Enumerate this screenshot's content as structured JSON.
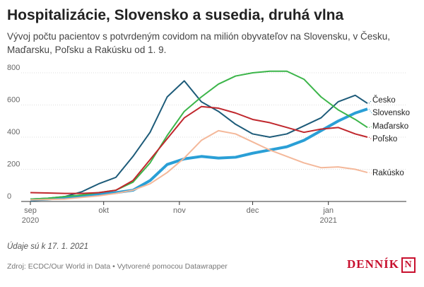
{
  "chart_data": {
    "type": "line",
    "title": "Hospitalizácie, Slovensko a susedia, druhá vlna",
    "subtitle": "Vývoj počtu pacientov s potvrdeným covidom na milión obyvateľov na Slovensku, v Česku, Maďarsku, Poľsku a Rakúsku od 1. 9.",
    "note": "Údaje sú k 17. 1. 2021",
    "source": "Zdroj: ECDC/Our World in Data • Vytvorené pomocou Datawrapper",
    "logo": "DENNÍK",
    "x": [
      0,
      7,
      14,
      21,
      28,
      35,
      42,
      49,
      56,
      63,
      70,
      77,
      84,
      91,
      98,
      105,
      112,
      119,
      126,
      133,
      138
    ],
    "xlim": [
      0,
      138
    ],
    "xticks": [
      {
        "value": 0,
        "label": "sep",
        "year": "2020"
      },
      {
        "value": 30,
        "label": "okt"
      },
      {
        "value": 61,
        "label": "nov"
      },
      {
        "value": 91,
        "label": "dec"
      },
      {
        "value": 122,
        "label": "jan",
        "year": "2021"
      }
    ],
    "ylim": [
      0,
      800
    ],
    "yticks": [
      0,
      200,
      400,
      600,
      800
    ],
    "grid": true,
    "series": [
      {
        "name": "Česko",
        "color": "#1d5b79",
        "width": 2,
        "values": [
          15,
          20,
          30,
          60,
          110,
          150,
          280,
          430,
          650,
          750,
          620,
          560,
          480,
          420,
          400,
          420,
          470,
          520,
          620,
          660,
          610
        ]
      },
      {
        "name": "Slovensko",
        "color": "#2a9fd6",
        "width": 4,
        "values": [
          10,
          15,
          25,
          35,
          45,
          55,
          70,
          130,
          230,
          265,
          280,
          270,
          275,
          300,
          320,
          340,
          380,
          440,
          500,
          550,
          575
        ]
      },
      {
        "name": "Maďarsko",
        "color": "#3cb54a",
        "width": 2,
        "values": [
          15,
          20,
          30,
          40,
          55,
          70,
          120,
          240,
          410,
          560,
          650,
          730,
          780,
          800,
          810,
          810,
          760,
          650,
          570,
          510,
          460
        ]
      },
      {
        "name": "Poľsko",
        "color": "#c0272d",
        "width": 2,
        "values": [
          55,
          53,
          50,
          50,
          55,
          70,
          130,
          260,
          390,
          520,
          590,
          580,
          550,
          510,
          490,
          460,
          430,
          450,
          460,
          420,
          400
        ]
      },
      {
        "name": "Rakúsko",
        "color": "#f4b89a",
        "width": 2,
        "values": [
          10,
          12,
          15,
          25,
          35,
          50,
          70,
          110,
          180,
          270,
          380,
          440,
          420,
          370,
          320,
          280,
          240,
          210,
          215,
          200,
          180
        ]
      }
    ]
  }
}
